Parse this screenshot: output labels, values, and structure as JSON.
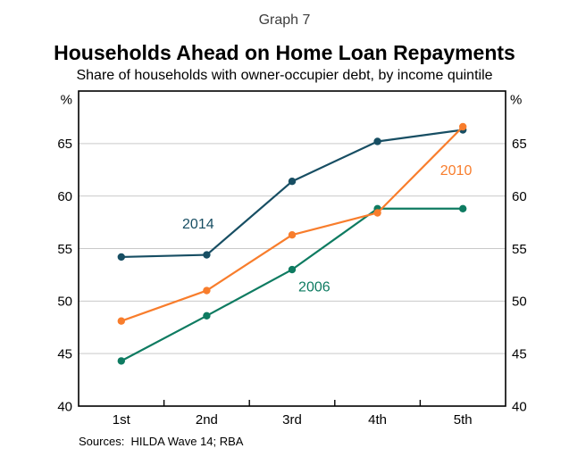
{
  "header": {
    "graph_number": "Graph 7",
    "title": "Households Ahead on Home Loan Repayments",
    "subtitle": "Share of households with owner-occupier debt, by income quintile"
  },
  "chart_data": {
    "type": "line",
    "title": "Households Ahead on Home Loan Repayments",
    "subtitle": "Share of households with owner-occupier debt, by income quintile",
    "categories": [
      "1st",
      "2nd",
      "3rd",
      "4th",
      "5th"
    ],
    "series": [
      {
        "name": "2006",
        "color": "#0e7b61",
        "values": [
          44.3,
          48.6,
          53.0,
          58.8,
          58.8
        ],
        "label_at": {
          "x": 2.26,
          "y": 51.4
        }
      },
      {
        "name": "2014",
        "color": "#174e63",
        "values": [
          54.2,
          54.4,
          61.4,
          65.2,
          66.3
        ],
        "label_at": {
          "x": 0.9,
          "y": 57.4
        }
      },
      {
        "name": "2010",
        "color": "#f87d2c",
        "values": [
          48.1,
          51.0,
          56.3,
          58.4,
          66.6
        ],
        "label_at": {
          "x": 3.92,
          "y": 62.5
        }
      }
    ],
    "ylim": [
      40,
      70
    ],
    "yticks": [
      40,
      45,
      50,
      55,
      60,
      65
    ],
    "unit_left": "%",
    "unit_right": "%",
    "grid": true,
    "grid_color": "#c9c9c9",
    "frame_color": "#000000",
    "tick_label_color": "#000000",
    "legend_position": "inline-labels"
  },
  "footer": {
    "sources": "Sources:  HILDA Wave 14; RBA"
  }
}
